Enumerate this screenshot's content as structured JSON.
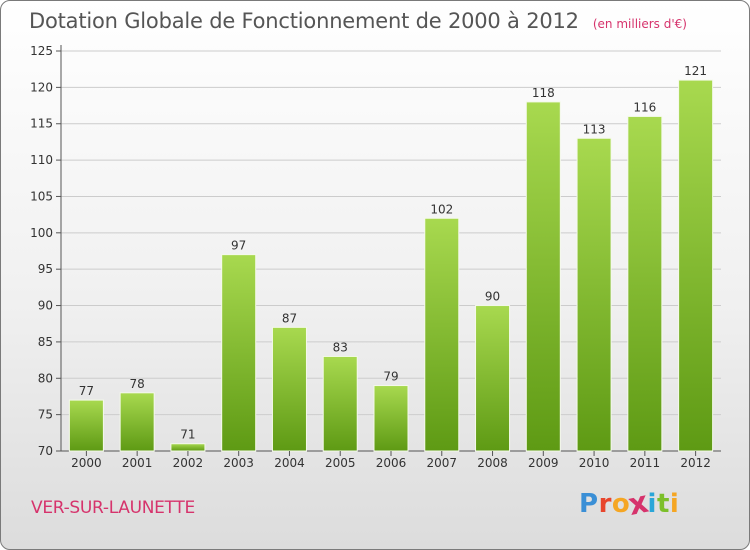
{
  "header": {
    "title": "Dotation Globale de Fonctionnement de 2000 à 2012",
    "unit_note": "(en milliers d'€)"
  },
  "footer": {
    "commune": "VER-SUR-LAUNETTE",
    "logo_text": "Proxiti",
    "logo_letters": [
      "P",
      "r",
      "o",
      "x",
      "i",
      "t",
      "i"
    ],
    "logo_colors": [
      "#3a8fd6",
      "#e8452c",
      "#f5a623",
      "#d6336c",
      "#2aa6d8",
      "#7cbf2a",
      "#f5a623"
    ]
  },
  "colors": {
    "bar_light": "#a8d94f",
    "bar_dark": "#5e9a14",
    "title": "#555555",
    "accent": "#d6336c",
    "grid": "#cccccc"
  },
  "chart_data": {
    "type": "bar",
    "title": "Dotation Globale de Fonctionnement de 2000 à 2012",
    "subtitle": "(en milliers d'€)",
    "xlabel": "",
    "ylabel": "",
    "categories": [
      "2000",
      "2001",
      "2002",
      "2003",
      "2004",
      "2005",
      "2006",
      "2007",
      "2008",
      "2009",
      "2010",
      "2011",
      "2012"
    ],
    "values": [
      77,
      78,
      71,
      97,
      87,
      83,
      79,
      102,
      90,
      118,
      113,
      116,
      121
    ],
    "ylim": [
      70,
      125
    ],
    "yticks": [
      70,
      75,
      80,
      85,
      90,
      95,
      100,
      105,
      110,
      115,
      120,
      125
    ],
    "grid": true,
    "legend": "none"
  }
}
